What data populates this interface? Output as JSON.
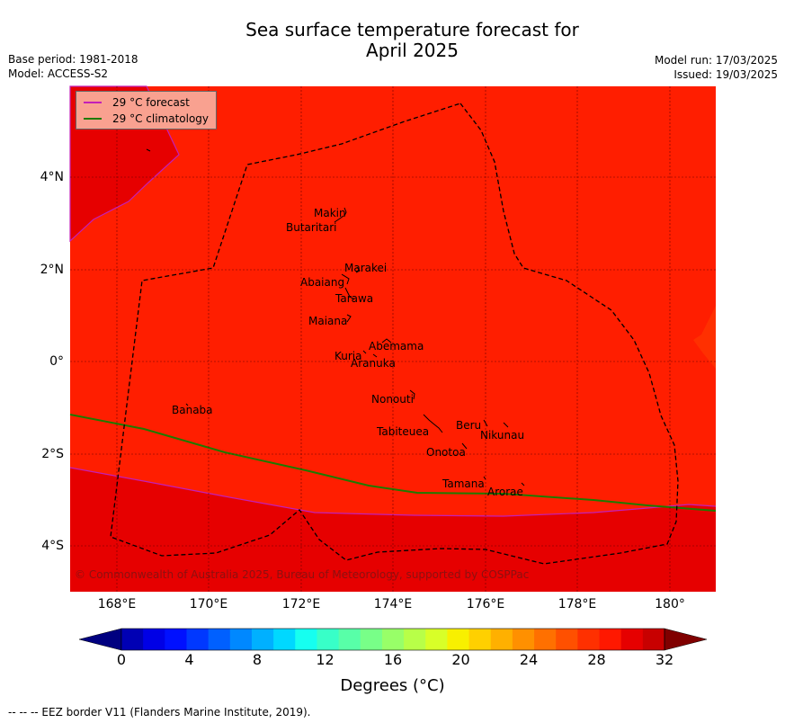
{
  "title_line1": "Sea surface temperature forecast for",
  "title_line2": "April 2025",
  "base_period": "Base period: 1981-2018",
  "model": "Model: ACCESS-S2",
  "model_run": "Model run: 17/03/2025",
  "issued": "Issued: 19/03/2025",
  "legend": {
    "forecast_label": "29 °C  forecast",
    "forecast_color": "#c31fb8",
    "climatology_label": "29 °C  climatology",
    "climatology_color": "#1e7a00"
  },
  "x_ticks": [
    "168°E",
    "170°E",
    "172°E",
    "174°E",
    "176°E",
    "178°E",
    "180°"
  ],
  "y_ticks": [
    "4°N",
    "2°N",
    "0°",
    "2°S",
    "4°S"
  ],
  "places": [
    "Makin",
    "Butaritari",
    "Marakei",
    "Abaiang",
    "Tarawa",
    "Maiana",
    "Abemama",
    "Kuria",
    "Aranuka",
    "Nonouti",
    "Banaba",
    "Tabiteuea",
    "Beru",
    "Nikunau",
    "Onotoa",
    "Tamana",
    "Arorae"
  ],
  "copyright": "© Commonwealth of Australia 2025, Bureau of Meteorology, supported by COSPPac",
  "colorbar": {
    "ticks": [
      "0",
      "4",
      "8",
      "12",
      "16",
      "20",
      "24",
      "28",
      "32"
    ],
    "label": "Degrees (°C)",
    "colors": [
      "#000080",
      "#0000b4",
      "#0000e6",
      "#0010ff",
      "#0038ff",
      "#0060ff",
      "#0088ff",
      "#00b0ff",
      "#00d8ff",
      "#16fff0",
      "#38ffc8",
      "#58ffa8",
      "#78ff88",
      "#98ff68",
      "#b8ff48",
      "#d8ff28",
      "#f8f000",
      "#ffd000",
      "#ffb000",
      "#ff9000",
      "#ff7000",
      "#ff5000",
      "#ff3000",
      "#ff1800",
      "#e60000",
      "#c80000",
      "#800000"
    ],
    "field_colors": {
      "warm": "#ff1e00",
      "warmer": "#e60000"
    }
  },
  "footnote": "--  --  -- EEZ border V11 (Flanders Marine Institute, 2019)."
}
